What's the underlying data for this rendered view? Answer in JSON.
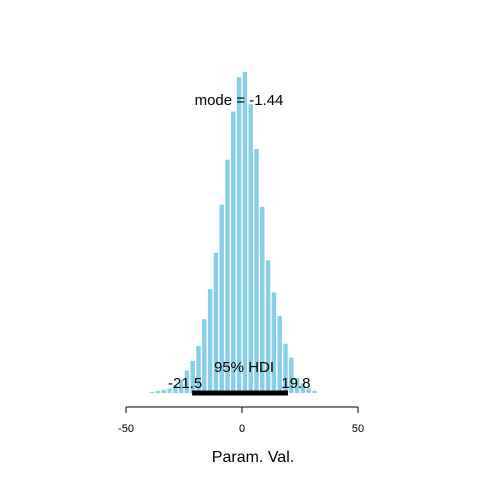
{
  "chart_data": {
    "type": "bar",
    "title": "",
    "xlabel": "Param. Val.",
    "ylabel": "",
    "xlim": [
      -50,
      50
    ],
    "xticks": [
      -50,
      0,
      50
    ],
    "xtick_labels": [
      "-50",
      "0",
      "50"
    ],
    "grid": false,
    "legend": "none",
    "bar_color": "#87CEEB",
    "hdi_color": "#000000",
    "bins": [
      {
        "x0": -40,
        "x1": -37.5,
        "count": 1
      },
      {
        "x0": -37.5,
        "x1": -35,
        "count": 2
      },
      {
        "x0": -35,
        "x1": -32.5,
        "count": 3
      },
      {
        "x0": -32.5,
        "x1": -30,
        "count": 4
      },
      {
        "x0": -30,
        "x1": -27.5,
        "count": 7
      },
      {
        "x0": -27.5,
        "x1": -25,
        "count": 12
      },
      {
        "x0": -25,
        "x1": -22.5,
        "count": 21
      },
      {
        "x0": -22.5,
        "x1": -20,
        "count": 30
      },
      {
        "x0": -20,
        "x1": -17.5,
        "count": 44
      },
      {
        "x0": -17.5,
        "x1": -15,
        "count": 69
      },
      {
        "x0": -15,
        "x1": -12.5,
        "count": 97
      },
      {
        "x0": -12.5,
        "x1": -10,
        "count": 131
      },
      {
        "x0": -10,
        "x1": -7.5,
        "count": 176
      },
      {
        "x0": -7.5,
        "x1": -5,
        "count": 218
      },
      {
        "x0": -5,
        "x1": -2.5,
        "count": 263
      },
      {
        "x0": -2.5,
        "x1": 0,
        "count": 295
      },
      {
        "x0": 0,
        "x1": 2.5,
        "count": 300
      },
      {
        "x0": 2.5,
        "x1": 5,
        "count": 270
      },
      {
        "x0": 5,
        "x1": 7.5,
        "count": 228
      },
      {
        "x0": 7.5,
        "x1": 10,
        "count": 174
      },
      {
        "x0": 10,
        "x1": 12.5,
        "count": 124
      },
      {
        "x0": 12.5,
        "x1": 15,
        "count": 94
      },
      {
        "x0": 15,
        "x1": 17.5,
        "count": 72
      },
      {
        "x0": 17.5,
        "x1": 20,
        "count": 46
      },
      {
        "x0": 20,
        "x1": 22.5,
        "count": 33
      },
      {
        "x0": 22.5,
        "x1": 25,
        "count": 14
      },
      {
        "x0": 25,
        "x1": 27.5,
        "count": 9
      },
      {
        "x0": 27.5,
        "x1": 30,
        "count": 4
      },
      {
        "x0": 30,
        "x1": 32.5,
        "count": 2
      }
    ],
    "annotations": {
      "mode_text": "mode = -1.44",
      "hdi_text": "95% HDI",
      "hdi_low": -21.5,
      "hdi_high": 19.8,
      "hdi_low_text": "-21.5",
      "hdi_high_text": "19.8"
    }
  }
}
